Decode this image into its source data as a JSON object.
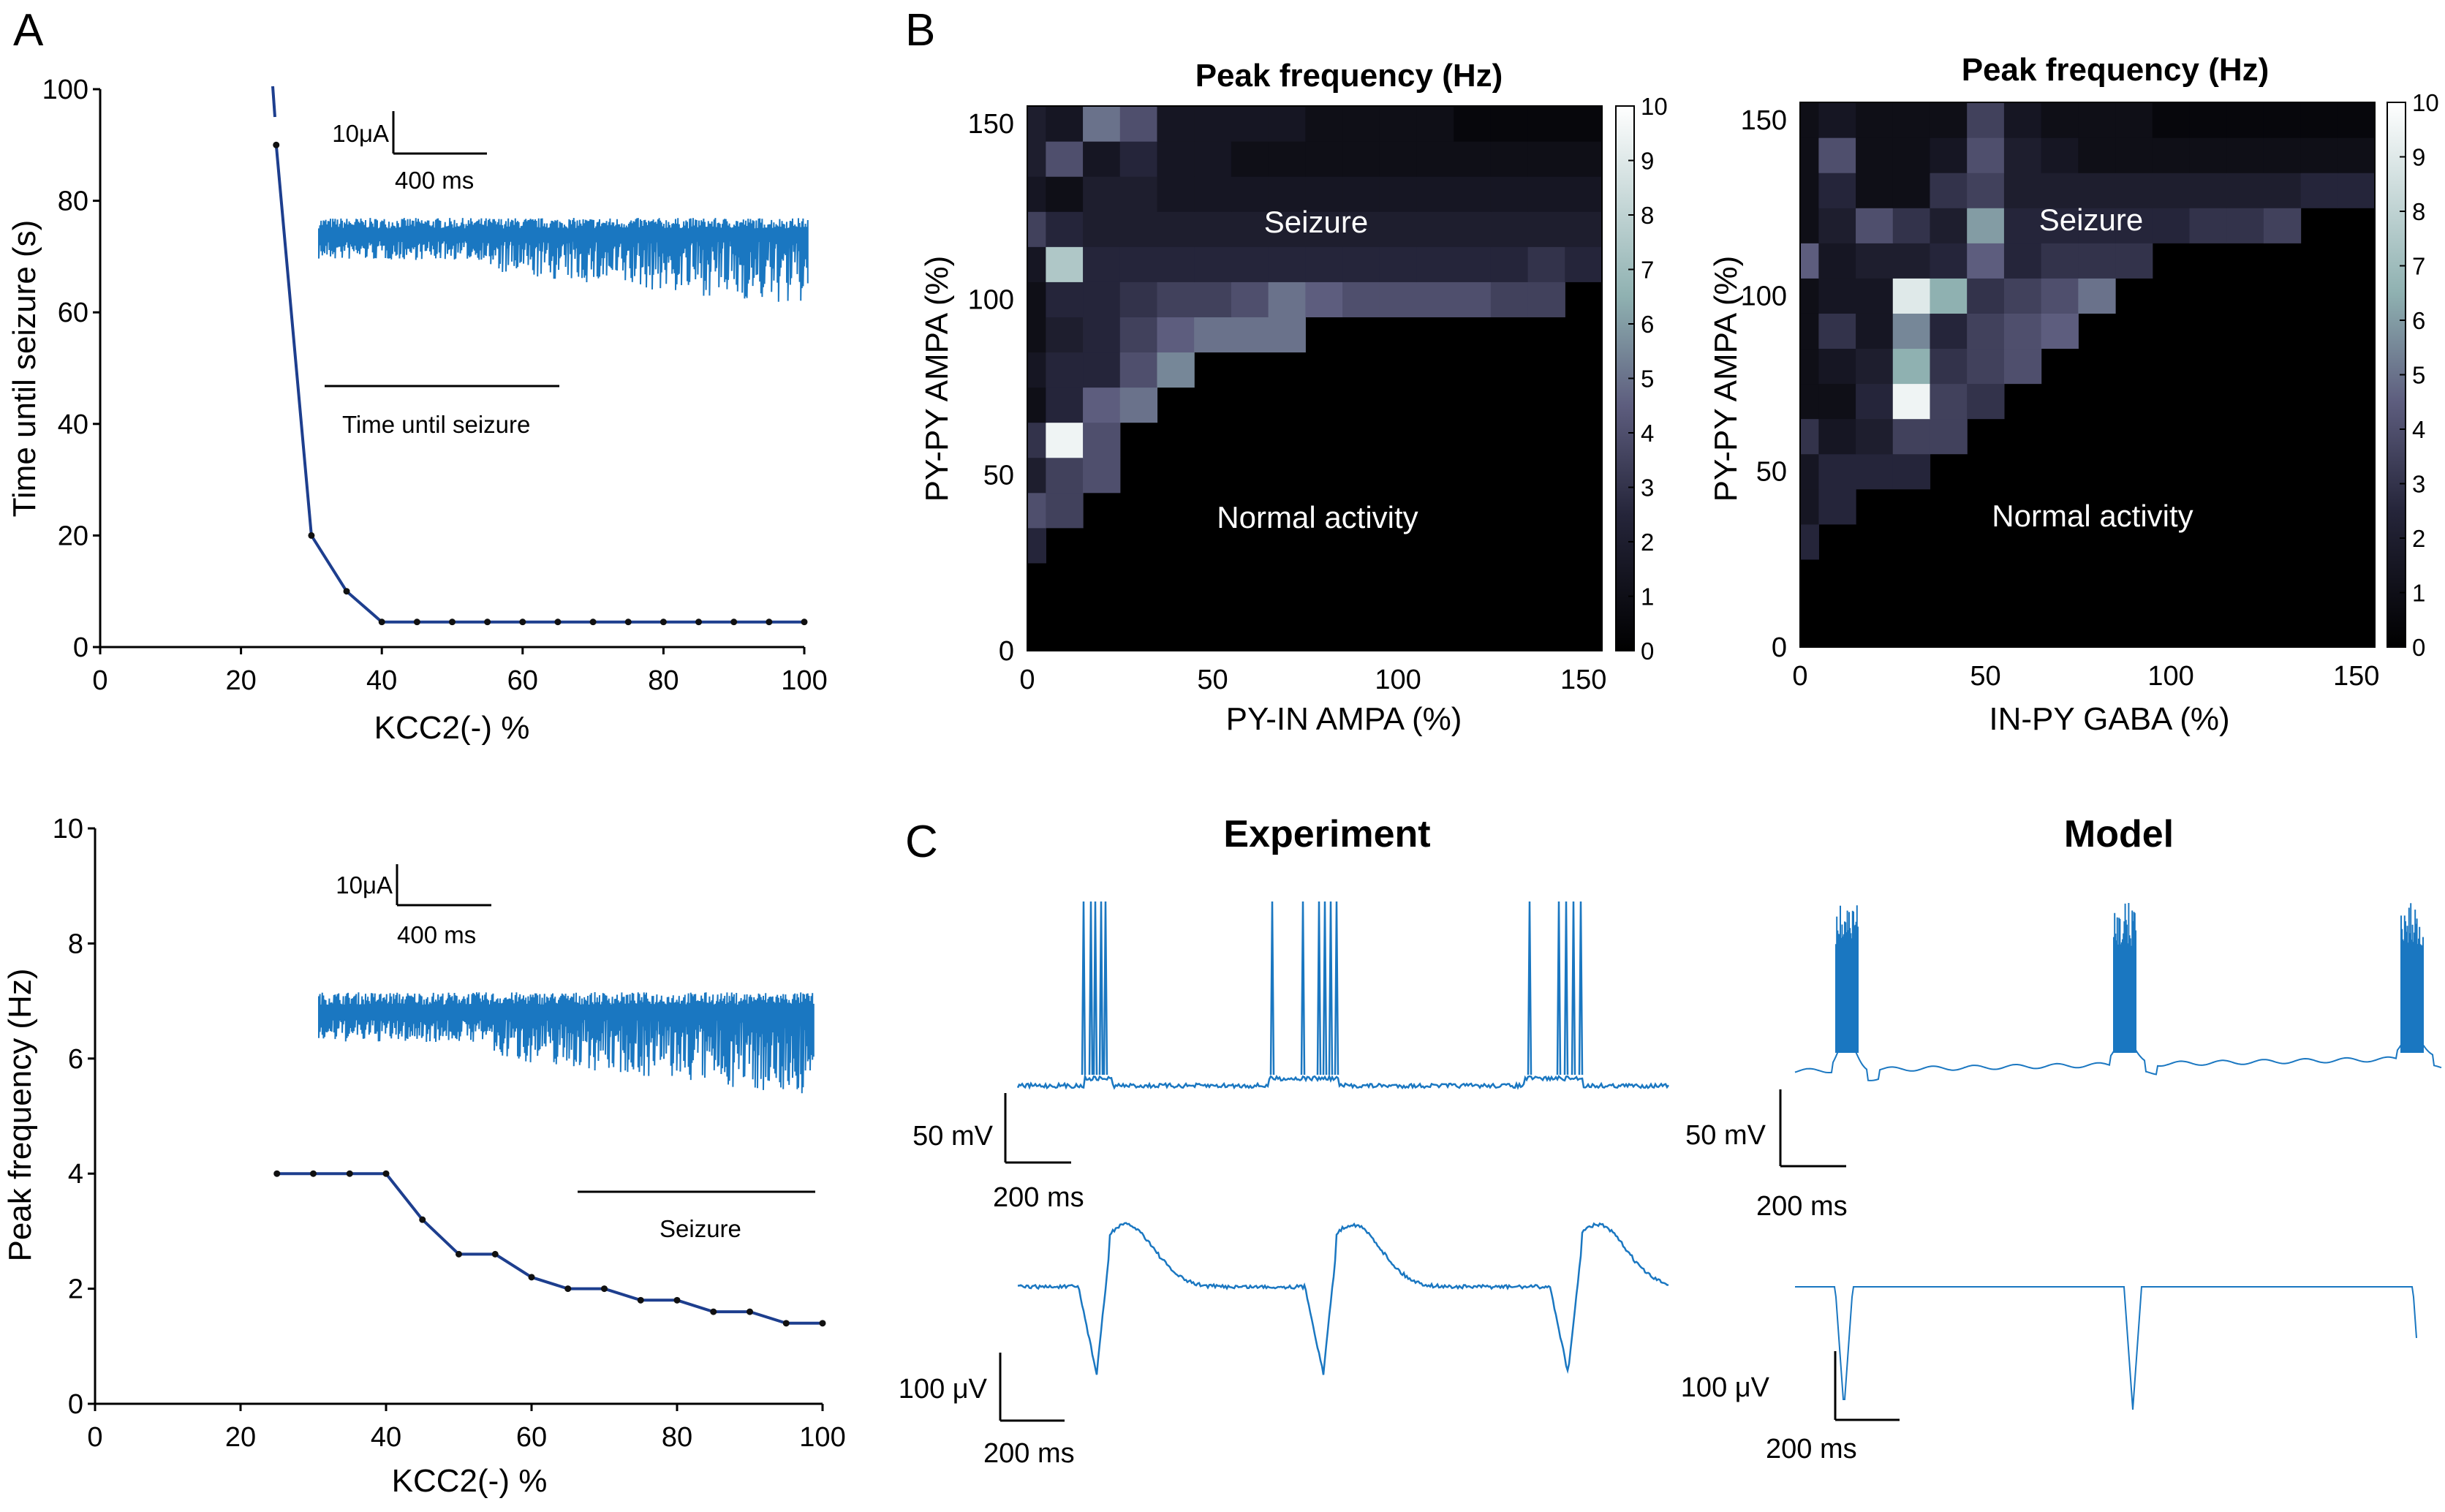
{
  "colors": {
    "trace": "#1a77c1",
    "curve": "#1d3e8e",
    "marker": "#111111",
    "heat_low": "#000000",
    "heat_high": "#ffffff"
  },
  "panels": {
    "a": "A",
    "b": "B",
    "c": "C"
  },
  "panel_c": {
    "experiment_title": "Experiment",
    "model_title": "Model",
    "scale_mv": "50 mV",
    "scale_uv": "100 μV",
    "scale_ms": "200 ms"
  },
  "chart_data": [
    {
      "id": "time_until_seizure",
      "type": "line",
      "xlabel": "KCC2(-) %",
      "ylabel": "Time until seizure (s)",
      "xlim": [
        0,
        100
      ],
      "ylim": [
        0,
        100
      ],
      "xticks": [
        "0",
        "20",
        "40",
        "60",
        "80",
        "100"
      ],
      "yticks": [
        "0",
        "20",
        "40",
        "60",
        "80",
        "100"
      ],
      "x": [
        25,
        30,
        35,
        40,
        45,
        50,
        55,
        60,
        65,
        70,
        75,
        80,
        85,
        90,
        95,
        100
      ],
      "y": [
        90,
        20,
        10,
        4.5,
        4.5,
        4.5,
        4.5,
        4.5,
        4.5,
        4.5,
        4.5,
        4.5,
        4.5,
        4.5,
        4.5,
        4.5
      ],
      "inset": {
        "scale_current": "10μA",
        "scale_time": "400 ms",
        "marker_label": "Time until seizure"
      }
    },
    {
      "id": "peak_frequency_kcc2",
      "type": "line",
      "xlabel": "KCC2(-) %",
      "ylabel": "Peak frequency (Hz)",
      "xlim": [
        0,
        100
      ],
      "ylim": [
        0,
        10
      ],
      "xticks": [
        "0",
        "20",
        "40",
        "60",
        "80",
        "100"
      ],
      "yticks": [
        "0",
        "2",
        "4",
        "6",
        "8",
        "10"
      ],
      "x": [
        25,
        30,
        35,
        40,
        45,
        50,
        55,
        60,
        65,
        70,
        75,
        80,
        85,
        90,
        95,
        100
      ],
      "y": [
        4,
        4,
        4,
        4,
        3.2,
        2.6,
        2.6,
        2.2,
        2,
        2,
        1.8,
        1.8,
        1.6,
        1.6,
        1.4,
        1.4
      ],
      "inset": {
        "scale_current": "10μA",
        "scale_time": "400 ms",
        "marker_label": "Seizure"
      }
    },
    {
      "id": "heatmap_py_in",
      "type": "heatmap",
      "title": "Peak frequency (Hz)",
      "xlabel": "PY-IN AMPA (%)",
      "ylabel": "PY-PY AMPA (%)",
      "xlim": [
        0,
        155
      ],
      "ylim": [
        0,
        155
      ],
      "xticks": [
        "0",
        "50",
        "100",
        "150"
      ],
      "yticks": [
        "0",
        "50",
        "100",
        "150"
      ],
      "cell_step": 10,
      "colorbar": {
        "min": 0,
        "max": 10,
        "ticks": [
          "0",
          "1",
          "2",
          "3",
          "4",
          "5",
          "6",
          "7",
          "8",
          "9",
          "10"
        ]
      },
      "annotations": [
        "Seizure",
        "Normal activity"
      ],
      "rows_bottom_to_top_y": [
        0,
        10,
        20,
        30,
        40,
        50,
        60,
        70,
        80,
        90,
        100,
        110,
        120,
        130,
        140,
        150
      ],
      "values": [
        [
          0,
          0,
          0,
          0,
          0,
          0,
          0,
          0,
          0,
          0,
          0,
          0,
          0,
          0,
          0,
          0
        ],
        [
          0,
          0,
          0,
          0,
          0,
          0,
          0,
          0,
          0,
          0,
          0,
          0,
          0,
          0,
          0,
          0
        ],
        [
          0,
          0,
          0,
          0,
          0,
          0,
          0,
          0,
          0,
          0,
          0,
          0,
          0,
          0,
          0,
          0
        ],
        [
          2.5,
          0,
          0,
          0,
          0,
          0,
          0,
          0,
          0,
          0,
          0,
          0,
          0,
          0,
          0,
          0
        ],
        [
          4,
          3.5,
          0,
          0,
          0,
          0,
          0,
          0,
          0,
          0,
          0,
          0,
          0,
          0,
          0,
          0
        ],
        [
          2,
          3.5,
          4,
          0,
          0,
          0,
          0,
          0,
          0,
          0,
          0,
          0,
          0,
          0,
          0,
          0
        ],
        [
          3,
          9.5,
          4,
          0,
          0,
          0,
          0,
          0,
          0,
          0,
          0,
          0,
          0,
          0,
          0,
          0
        ],
        [
          1,
          2.5,
          4.5,
          5,
          0,
          0,
          0,
          0,
          0,
          0,
          0,
          0,
          0,
          0,
          0,
          0
        ],
        [
          1.5,
          2.5,
          2.5,
          4,
          5.5,
          0,
          0,
          0,
          0,
          0,
          0,
          0,
          0,
          0,
          0,
          0
        ],
        [
          1,
          2,
          2.5,
          3.5,
          4.5,
          5,
          5,
          5,
          0,
          0,
          0,
          0,
          0,
          0,
          0,
          0
        ],
        [
          1,
          2.5,
          2.5,
          3,
          3.5,
          3.5,
          4,
          5,
          4.5,
          4,
          4,
          4,
          4,
          3.5,
          3.5,
          0
        ],
        [
          1.5,
          7.5,
          2.5,
          2.5,
          2.5,
          2.5,
          2.5,
          2.5,
          2.5,
          2.5,
          2.5,
          2.5,
          2.5,
          2.5,
          3,
          2.5
        ],
        [
          3.5,
          2.5,
          2,
          2,
          2,
          2,
          2,
          2,
          2,
          2,
          2,
          2,
          2,
          2,
          2,
          2
        ],
        [
          1.5,
          1,
          2,
          2,
          1.5,
          1.5,
          1.5,
          1.5,
          1.5,
          1.5,
          1.5,
          1.5,
          1.5,
          1.5,
          1.5,
          1.5
        ],
        [
          2,
          4,
          1.5,
          2.5,
          1.5,
          1.5,
          1,
          1,
          1,
          1,
          1,
          1,
          1,
          1,
          1,
          1
        ],
        [
          2,
          1.5,
          5,
          4,
          1.5,
          1.5,
          1.5,
          1.5,
          1,
          1,
          1,
          1,
          0.5,
          0.5,
          0.5,
          0.5
        ]
      ]
    },
    {
      "id": "heatmap_in_py",
      "type": "heatmap",
      "title": "Peak frequency (Hz)",
      "xlabel": "IN-PY GABA (%)",
      "ylabel": "PY-PY AMPA (%)",
      "xlim": [
        0,
        155
      ],
      "ylim": [
        0,
        155
      ],
      "xticks": [
        "0",
        "50",
        "100",
        "150"
      ],
      "yticks": [
        "0",
        "50",
        "100",
        "150"
      ],
      "cell_step": 10,
      "colorbar": {
        "min": 0,
        "max": 10,
        "ticks": [
          "0",
          "1",
          "2",
          "3",
          "4",
          "5",
          "6",
          "7",
          "8",
          "9",
          "10"
        ]
      },
      "annotations": [
        "Seizure",
        "Normal activity"
      ],
      "rows_bottom_to_top_y": [
        0,
        10,
        20,
        30,
        40,
        50,
        60,
        70,
        80,
        90,
        100,
        110,
        120,
        130,
        140,
        150
      ],
      "values": [
        [
          0,
          0,
          0,
          0,
          0,
          0,
          0,
          0,
          0,
          0,
          0,
          0,
          0,
          0,
          0,
          0
        ],
        [
          0,
          0,
          0,
          0,
          0,
          0,
          0,
          0,
          0,
          0,
          0,
          0,
          0,
          0,
          0,
          0
        ],
        [
          0,
          0,
          0,
          0,
          0,
          0,
          0,
          0,
          0,
          0,
          0,
          0,
          0,
          0,
          0,
          0
        ],
        [
          2.5,
          0,
          0,
          0,
          0,
          0,
          0,
          0,
          0,
          0,
          0,
          0,
          0,
          0,
          0,
          0
        ],
        [
          1.5,
          2.5,
          0,
          0,
          0,
          0,
          0,
          0,
          0,
          0,
          0,
          0,
          0,
          0,
          0,
          0
        ],
        [
          1.5,
          2.5,
          2.5,
          2.5,
          0,
          0,
          0,
          0,
          0,
          0,
          0,
          0,
          0,
          0,
          0,
          0
        ],
        [
          3,
          1.5,
          2,
          3.5,
          3.5,
          0,
          0,
          0,
          0,
          0,
          0,
          0,
          0,
          0,
          0,
          0
        ],
        [
          1,
          1,
          2.5,
          9.5,
          3.5,
          3,
          0,
          0,
          0,
          0,
          0,
          0,
          0,
          0,
          0,
          0
        ],
        [
          1,
          1.5,
          2,
          6.5,
          3,
          3.5,
          4,
          0,
          0,
          0,
          0,
          0,
          0,
          0,
          0,
          0
        ],
        [
          1,
          3,
          1.5,
          5.5,
          2.5,
          3.5,
          4,
          4.5,
          0,
          0,
          0,
          0,
          0,
          0,
          0,
          0
        ],
        [
          1,
          1.5,
          1.5,
          9,
          6.5,
          3,
          3.5,
          4,
          5,
          0,
          0,
          0,
          0,
          0,
          0,
          0
        ],
        [
          4.5,
          1.5,
          2,
          2,
          2.5,
          4.5,
          2.5,
          3,
          3,
          3,
          0,
          0,
          0,
          0,
          0,
          0
        ],
        [
          1,
          2,
          4,
          3,
          2,
          6,
          2.5,
          2.5,
          2.5,
          2.5,
          2.5,
          3,
          3,
          3.5,
          0,
          0
        ],
        [
          1,
          2.5,
          1,
          1,
          3,
          3.5,
          2,
          2,
          2,
          2,
          2,
          2,
          2,
          2,
          2.5,
          2.5
        ],
        [
          1,
          4,
          1,
          1,
          1.5,
          4,
          2,
          1.5,
          1,
          1,
          1,
          1,
          1,
          1,
          1,
          1
        ],
        [
          1,
          1.5,
          1,
          1,
          1,
          3.5,
          1.5,
          1,
          1,
          1,
          0.5,
          0.5,
          0.5,
          0.5,
          0.5,
          0.5
        ]
      ]
    }
  ]
}
